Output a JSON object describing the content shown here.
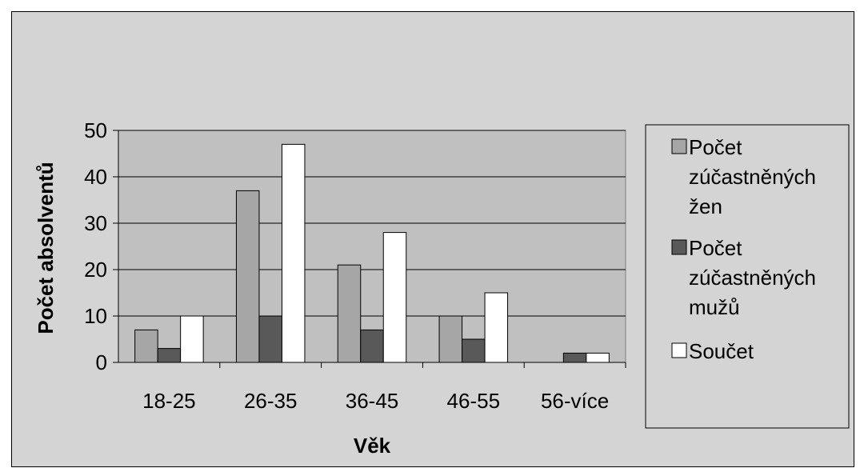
{
  "chart_data": {
    "type": "bar",
    "categories": [
      "18-25",
      "26-35",
      "36-45",
      "46-55",
      "56-více"
    ],
    "series": [
      {
        "name": "Počet zúčastněných žen",
        "legend_lines": [
          "Počet",
          "zúčastněných",
          "žen"
        ],
        "values": [
          7,
          37,
          21,
          10,
          0
        ],
        "color": "#a6a6a6"
      },
      {
        "name": "Počet zúčastněných mužů",
        "legend_lines": [
          "Počet",
          "zúčastněných",
          "mužů"
        ],
        "values": [
          3,
          10,
          7,
          5,
          2
        ],
        "color": "#595959"
      },
      {
        "name": "Součet",
        "legend_lines": [
          "Součet"
        ],
        "values": [
          10,
          47,
          28,
          15,
          2
        ],
        "color": "#ffffff"
      }
    ],
    "xlabel": "Věk",
    "ylabel": "Počet absolventů",
    "ylim": [
      0,
      50
    ],
    "yticks": [
      "0",
      "10",
      "20",
      "30",
      "40",
      "50"
    ],
    "grid": true,
    "legend_position": "right",
    "plot_background": "#c0c0c0",
    "chart_background": "#d4d4d4"
  }
}
